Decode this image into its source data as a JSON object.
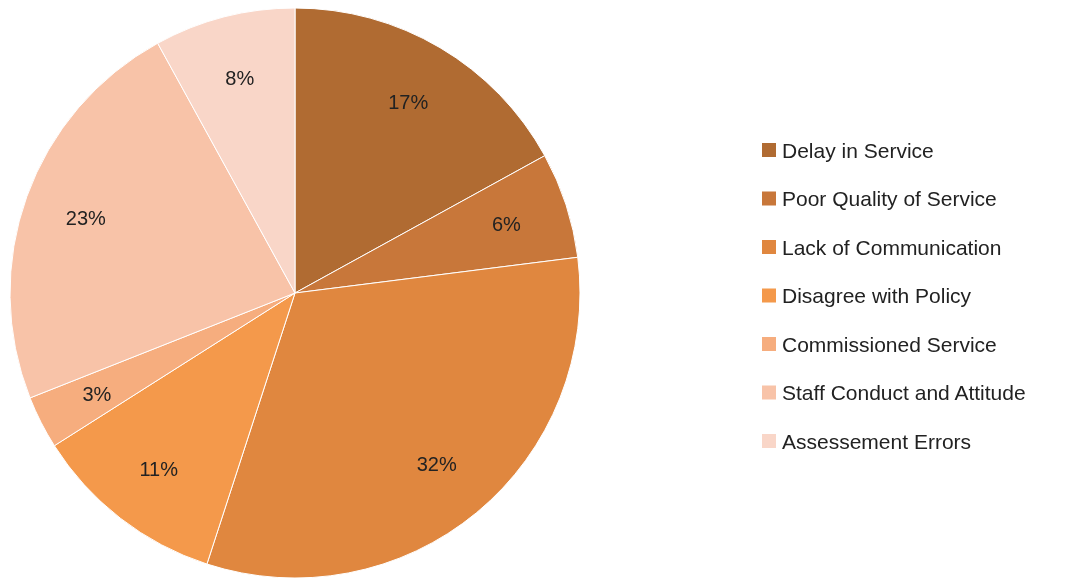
{
  "chart_data": {
    "type": "pie",
    "categories": [
      "Delay in Service",
      "Poor Quality of Service",
      "Lack of Communication",
      "Disagree with Policy",
      "Commissioned Service",
      "Staff Conduct and Attitude",
      "Assessement Errors"
    ],
    "values": [
      17,
      6,
      32,
      11,
      3,
      23,
      8
    ],
    "value_labels": [
      "17%",
      "6%",
      "32%",
      "11%",
      "3%",
      "23%",
      "8%"
    ],
    "colors": [
      "#b06b32",
      "#c8773a",
      "#e0873f",
      "#f4994b",
      "#f6ad7e",
      "#f8c3a8",
      "#f9d6c8"
    ],
    "legend": "right"
  }
}
